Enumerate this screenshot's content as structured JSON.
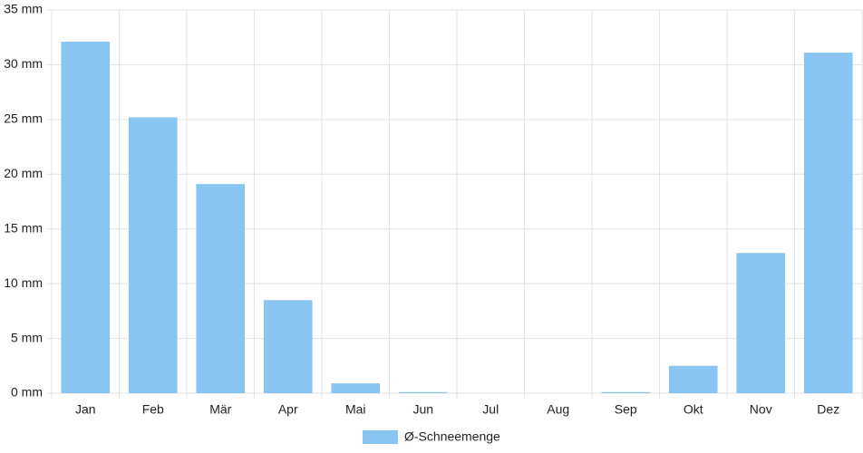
{
  "chart_data": {
    "type": "bar",
    "categories": [
      "Jan",
      "Feb",
      "Mär",
      "Apr",
      "Mai",
      "Jun",
      "Jul",
      "Aug",
      "Sep",
      "Okt",
      "Nov",
      "Dez"
    ],
    "series": [
      {
        "name": "Ø-Schneemenge",
        "color": "#88c5f1",
        "values": [
          32.1,
          25.2,
          19.1,
          8.5,
          0.9,
          0.1,
          0,
          0,
          0.1,
          2.5,
          12.8,
          31.1
        ]
      }
    ],
    "ylim": [
      0,
      35
    ],
    "yticks": [
      {
        "value": 0,
        "label": "0 mm"
      },
      {
        "value": 5,
        "label": "5 mm"
      },
      {
        "value": 10,
        "label": "10 mm"
      },
      {
        "value": 15,
        "label": "15 mm"
      },
      {
        "value": 20,
        "label": "20 mm"
      },
      {
        "value": 25,
        "label": "25 mm"
      },
      {
        "value": 30,
        "label": "30 mm"
      },
      {
        "value": 35,
        "label": "35 mm"
      }
    ],
    "grid": true,
    "legend": "bottom"
  }
}
